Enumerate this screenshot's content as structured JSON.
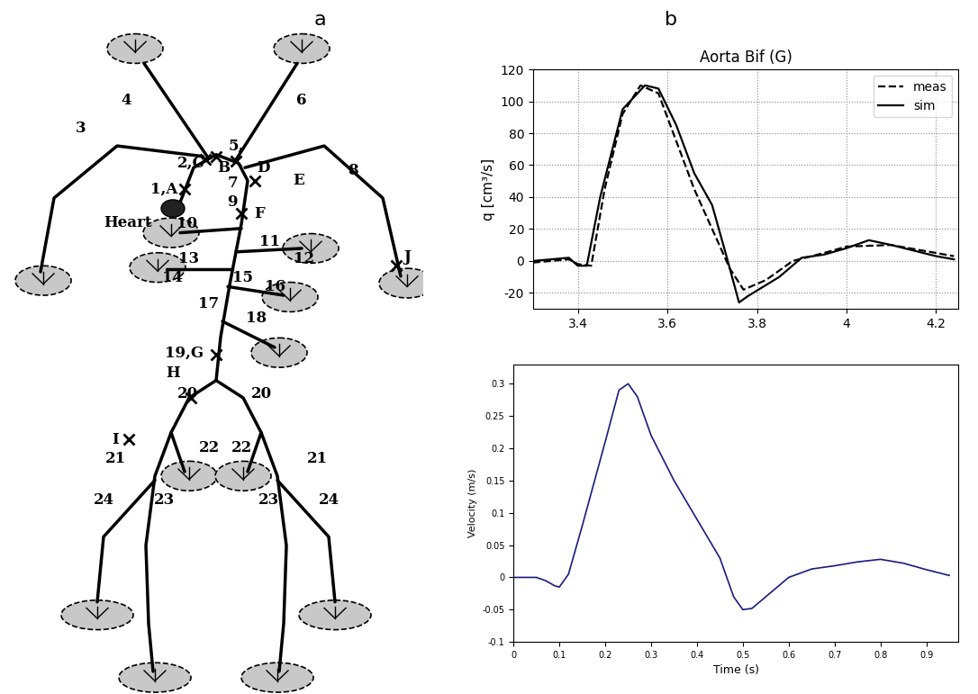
{
  "panel_labels": [
    "a",
    "b"
  ],
  "diagram": {
    "labels": [
      "4",
      "6",
      "3",
      "2,C",
      "B",
      "5,",
      "D",
      "1,A",
      "7",
      "9",
      "8",
      "E",
      "Heart",
      "F",
      "10",
      "11",
      "12",
      "13",
      "14",
      "15",
      "16",
      "17",
      "18",
      "J",
      "19,G",
      "H",
      "20",
      "20",
      "I",
      "21",
      "21",
      "22",
      "22",
      "24",
      "23",
      "23",
      "24"
    ]
  },
  "chart_data": [
    {
      "type": "line",
      "title": "Aorta Bif (G)",
      "y_label": "q [cm³/s]",
      "xlim": [
        3.3,
        4.25
      ],
      "xticks": [
        3.4,
        3.6,
        3.8,
        4,
        4.2
      ],
      "ylim": [
        -30,
        120
      ],
      "yticks": [
        -20,
        0,
        20,
        40,
        60,
        80,
        100,
        120
      ],
      "grid": true,
      "legend": "upper right",
      "series": [
        {
          "name": "meas",
          "color": "#000000",
          "line_style": "dashed",
          "x": [
            3.3,
            3.38,
            3.4,
            3.43,
            3.46,
            3.5,
            3.54,
            3.58,
            3.62,
            3.66,
            3.7,
            3.74,
            3.77,
            3.82,
            3.88,
            3.95,
            4.0,
            4.1,
            4.2,
            4.24
          ],
          "values": [
            -1,
            1,
            -2,
            -3,
            45,
            92,
            110,
            105,
            75,
            45,
            20,
            -5,
            -18,
            -12,
            0,
            5,
            9,
            10,
            5,
            3
          ]
        },
        {
          "name": "sim",
          "color": "#000000",
          "line_style": "solid",
          "x": [
            3.3,
            3.38,
            3.4,
            3.42,
            3.45,
            3.5,
            3.55,
            3.58,
            3.62,
            3.66,
            3.7,
            3.73,
            3.76,
            3.78,
            3.85,
            3.9,
            3.95,
            4.0,
            4.05,
            4.1,
            4.2,
            4.24
          ],
          "values": [
            0,
            2,
            -3,
            -3,
            40,
            95,
            110,
            108,
            85,
            55,
            35,
            5,
            -26,
            -22,
            -10,
            2,
            4,
            8,
            13,
            10,
            3,
            1
          ]
        }
      ]
    },
    {
      "type": "line",
      "x_label": "Time (s)",
      "y_label": "Velocity (m/s)",
      "color": "#1a1a80",
      "xlim": [
        0,
        0.97
      ],
      "xticks": [
        0,
        0.1,
        0.2,
        0.3,
        0.4,
        0.5,
        0.6,
        0.7,
        0.8,
        0.9
      ],
      "ylim": [
        -0.1,
        0.33
      ],
      "yticks": [
        -0.1,
        -0.05,
        0,
        0.05,
        0.1,
        0.15,
        0.2,
        0.25,
        0.3
      ],
      "x": [
        0,
        0.05,
        0.07,
        0.09,
        0.1,
        0.12,
        0.15,
        0.2,
        0.23,
        0.25,
        0.27,
        0.3,
        0.35,
        0.4,
        0.45,
        0.48,
        0.5,
        0.52,
        0.55,
        0.6,
        0.65,
        0.7,
        0.75,
        0.8,
        0.85,
        0.9,
        0.95
      ],
      "values": [
        0,
        0,
        -0.005,
        -0.013,
        -0.015,
        0.005,
        0.08,
        0.21,
        0.29,
        0.3,
        0.28,
        0.22,
        0.15,
        0.09,
        0.03,
        -0.03,
        -0.05,
        -0.048,
        -0.03,
        0,
        0.013,
        0.018,
        0.024,
        0.028,
        0.022,
        0.012,
        0.003
      ]
    }
  ]
}
